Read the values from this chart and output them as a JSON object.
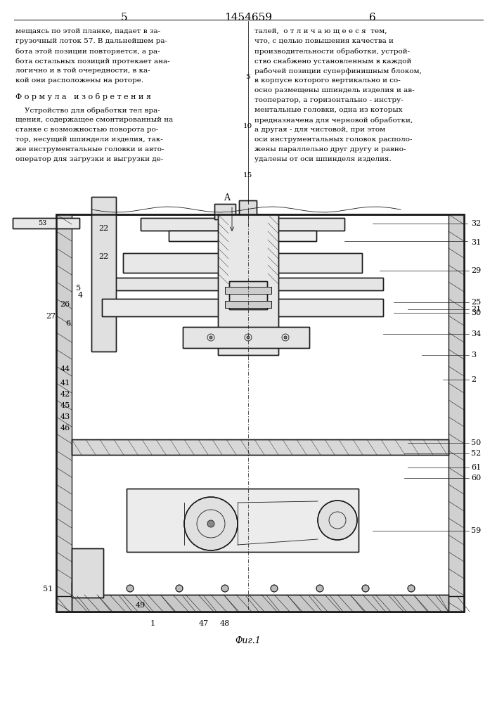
{
  "page_number_left": "5",
  "page_number_center": "1454659",
  "page_number_right": "6",
  "left_column_text": [
    "мещаясь по этой планке, падает в за-",
    "грузочный лоток 57. В дальнейшем ра-",
    "бота этой позиции повторяется, а ра-",
    "бота остальных позиций протекает ана-",
    "логично и в той очередности, в ка-",
    "кой они расположены на роторе."
  ],
  "formula_title": "Ф о р м у л а   и з о б р е т е н и я",
  "formula_text": [
    "    Устройство для обработки тел вра-",
    "щения, содержащее смонтированный на",
    "станке с возможностью поворота ро-",
    "тор, несущий шпиндели изделия, так-",
    "же инструментальные головки и авто-",
    "оператор для загрузки и выгрузки де-"
  ],
  "right_column_text": [
    "талей,  о т л и ч а ю щ е е с я  тем,",
    "что, с целью повышения качества и",
    "производительности обработки, устрой-",
    "ство снабжено установленным в каждой",
    "рабочей позиции суперфинишным блоком,",
    "в корпусе которого вертикально и со-",
    "осно размещены шпиндель изделия и ав-",
    "тооператор, а горизонтально - инстру-",
    "ментальные головки, одна из которых",
    "предназначена для черновой обработки,",
    "а другая - для чистовой, при этом",
    "оси инструментальных головок располо-",
    "жены параллельно друг другу и равно-",
    "удалены от оси шпинделя изделия."
  ],
  "line_numbers": [
    "5",
    "10",
    "15"
  ],
  "fig_label": "Фиг.1",
  "background_color": "#ffffff",
  "text_color": "#000000",
  "drawing_color": "#1a1a1a"
}
